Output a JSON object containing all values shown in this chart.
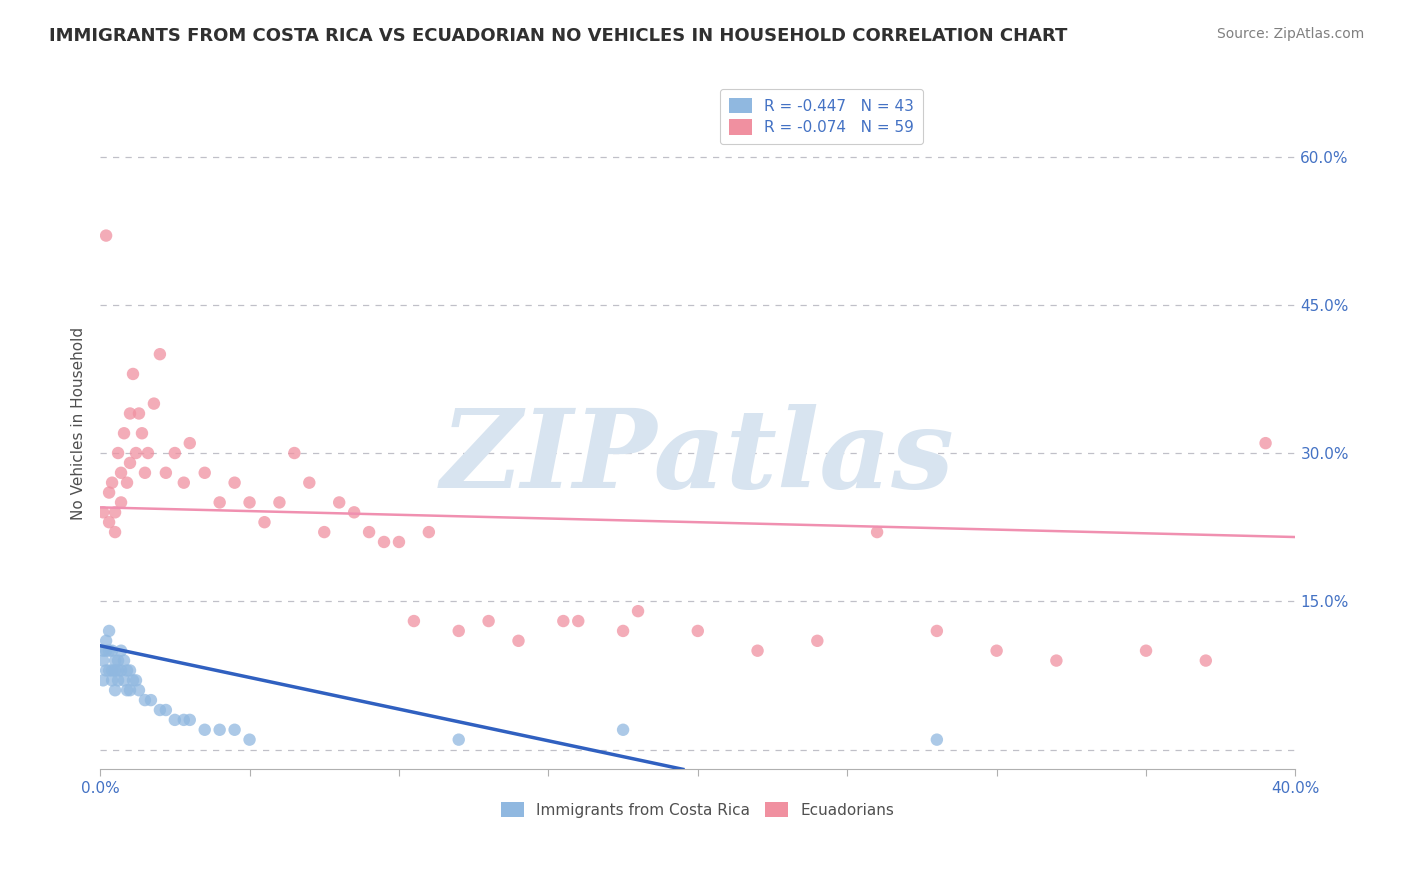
{
  "title": "IMMIGRANTS FROM COSTA RICA VS ECUADORIAN NO VEHICLES IN HOUSEHOLD CORRELATION CHART",
  "source": "Source: ZipAtlas.com",
  "ylabel": "No Vehicles in Household",
  "xlim": [
    0.0,
    0.4
  ],
  "ylim": [
    -0.02,
    0.68
  ],
  "xtick_positions": [
    0.0,
    0.05,
    0.1,
    0.15,
    0.2,
    0.25,
    0.3,
    0.35,
    0.4
  ],
  "xtick_labels": [
    "0.0%",
    "",
    "",
    "",
    "",
    "",
    "",
    "",
    "40.0%"
  ],
  "ytick_positions": [
    0.0,
    0.15,
    0.3,
    0.45,
    0.6
  ],
  "ytick_labels_right": [
    "",
    "15.0%",
    "30.0%",
    "45.0%",
    "60.0%"
  ],
  "legend_entries": [
    {
      "label": "R = -0.447   N = 43",
      "color": "#a8c8e8"
    },
    {
      "label": "R = -0.074   N = 59",
      "color": "#f4b8c8"
    }
  ],
  "legend_labels_bottom": [
    "Immigrants from Costa Rica",
    "Ecuadorians"
  ],
  "blue_scatter_x": [
    0.001,
    0.001,
    0.001,
    0.002,
    0.002,
    0.002,
    0.003,
    0.003,
    0.003,
    0.004,
    0.004,
    0.004,
    0.005,
    0.005,
    0.005,
    0.006,
    0.006,
    0.006,
    0.007,
    0.007,
    0.008,
    0.008,
    0.009,
    0.009,
    0.01,
    0.01,
    0.011,
    0.012,
    0.013,
    0.015,
    0.017,
    0.02,
    0.022,
    0.025,
    0.028,
    0.03,
    0.035,
    0.04,
    0.045,
    0.05,
    0.12,
    0.175,
    0.28
  ],
  "blue_scatter_y": [
    0.1,
    0.09,
    0.07,
    0.11,
    0.1,
    0.08,
    0.12,
    0.1,
    0.08,
    0.1,
    0.08,
    0.07,
    0.09,
    0.08,
    0.06,
    0.09,
    0.08,
    0.07,
    0.1,
    0.08,
    0.09,
    0.07,
    0.08,
    0.06,
    0.08,
    0.06,
    0.07,
    0.07,
    0.06,
    0.05,
    0.05,
    0.04,
    0.04,
    0.03,
    0.03,
    0.03,
    0.02,
    0.02,
    0.02,
    0.01,
    0.01,
    0.02,
    0.01
  ],
  "pink_scatter_x": [
    0.001,
    0.002,
    0.003,
    0.003,
    0.004,
    0.005,
    0.005,
    0.006,
    0.007,
    0.007,
    0.008,
    0.009,
    0.01,
    0.01,
    0.011,
    0.012,
    0.013,
    0.014,
    0.015,
    0.016,
    0.018,
    0.02,
    0.022,
    0.025,
    0.028,
    0.03,
    0.035,
    0.04,
    0.045,
    0.05,
    0.055,
    0.06,
    0.065,
    0.07,
    0.08,
    0.09,
    0.1,
    0.11,
    0.12,
    0.13,
    0.14,
    0.16,
    0.18,
    0.2,
    0.22,
    0.24,
    0.26,
    0.28,
    0.3,
    0.32,
    0.35,
    0.37,
    0.39,
    0.075,
    0.085,
    0.095,
    0.105,
    0.155,
    0.175
  ],
  "pink_scatter_y": [
    0.24,
    0.52,
    0.23,
    0.26,
    0.27,
    0.24,
    0.22,
    0.3,
    0.28,
    0.25,
    0.32,
    0.27,
    0.34,
    0.29,
    0.38,
    0.3,
    0.34,
    0.32,
    0.28,
    0.3,
    0.35,
    0.4,
    0.28,
    0.3,
    0.27,
    0.31,
    0.28,
    0.25,
    0.27,
    0.25,
    0.23,
    0.25,
    0.3,
    0.27,
    0.25,
    0.22,
    0.21,
    0.22,
    0.12,
    0.13,
    0.11,
    0.13,
    0.14,
    0.12,
    0.1,
    0.11,
    0.22,
    0.12,
    0.1,
    0.09,
    0.1,
    0.09,
    0.31,
    0.22,
    0.24,
    0.21,
    0.13,
    0.13,
    0.12
  ],
  "blue_trend_x": [
    0.0,
    0.195
  ],
  "blue_trend_y": [
    0.105,
    -0.02
  ],
  "pink_trend_x": [
    0.0,
    0.4
  ],
  "pink_trend_y": [
    0.245,
    0.215
  ],
  "scatter_alpha": 0.75,
  "scatter_size": 80,
  "blue_color": "#90b8e0",
  "pink_color": "#f090a0",
  "blue_trend_color": "#3060c0",
  "pink_trend_color": "#f090b0",
  "grid_color": "#c0c0c8",
  "watermark_text": "ZIPatlas",
  "watermark_color": "#d8e4f0",
  "background_color": "#ffffff",
  "title_color": "#303030",
  "source_color": "#808080",
  "axis_label_color": "#505050",
  "tick_color": "#4472c4"
}
